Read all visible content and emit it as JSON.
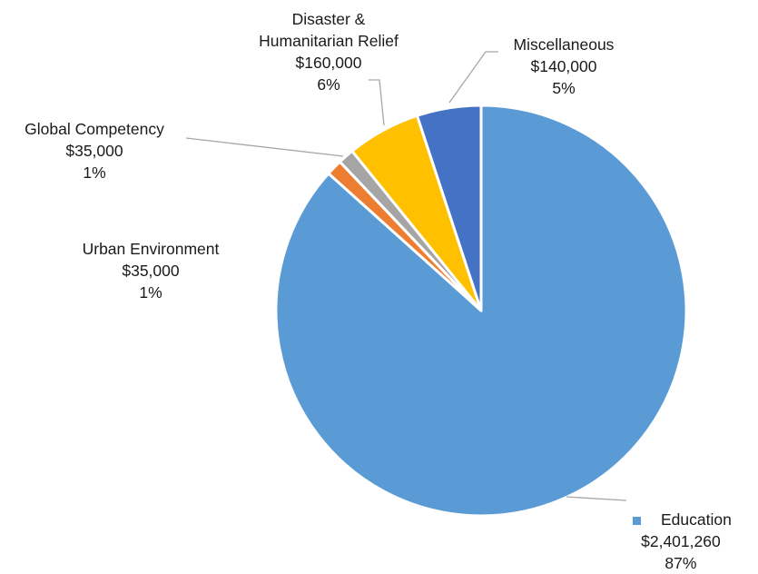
{
  "chart_data": {
    "type": "pie",
    "slices": [
      {
        "name": "Education",
        "value": 2401260,
        "value_label": "$2,401,260",
        "percent_label": "87%",
        "color": "#5B9BD5"
      },
      {
        "name": "Urban Environment",
        "value": 35000,
        "value_label": "$35,000",
        "percent_label": "1%",
        "color": "#ED7D31"
      },
      {
        "name": "Global Competency",
        "value": 35000,
        "value_label": "$35,000",
        "percent_label": "1%",
        "color": "#A5A5A5"
      },
      {
        "name": "Disaster & Humanitarian Relief",
        "name_lines": [
          "Disaster &",
          "Humanitarian Relief"
        ],
        "value": 160000,
        "value_label": "$160,000",
        "percent_label": "6%",
        "color": "#FFC000"
      },
      {
        "name": "Miscellaneous",
        "value": 140000,
        "value_label": "$140,000",
        "percent_label": "5%",
        "color": "#4472C4"
      }
    ],
    "start_angle": "12 o'clock",
    "direction": "clockwise",
    "title": "",
    "legend": "inline labels with leader lines"
  }
}
